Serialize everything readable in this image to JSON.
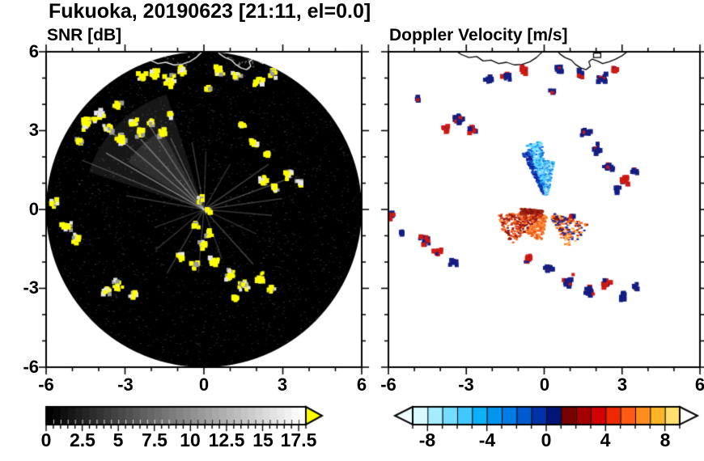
{
  "title": "Fukuoka, 20190623 [21:11, el=0.0]",
  "panels": [
    {
      "title": "SNR [dB]"
    },
    {
      "title": "Doppler Velocity [m/s]"
    }
  ],
  "axis": {
    "xlim": [
      -6,
      6
    ],
    "ylim": [
      -6,
      6
    ],
    "tick_labels": [
      "-6",
      "-3",
      "0",
      "3",
      "6"
    ],
    "major_step": 3,
    "minor_step": 1
  },
  "snr_colorbar": {
    "labels": [
      "0",
      "2.5",
      "5",
      "7.5",
      "10",
      "12.5",
      "15",
      "17.5"
    ],
    "label_values": [
      0,
      2.5,
      5,
      7.5,
      10,
      12.5,
      15,
      17.5
    ],
    "min": 0,
    "max": 18,
    "tick_step": 0.5,
    "start_color": "#000000",
    "end_color": "#ffffff",
    "over_arrow_color": "#ffff00"
  },
  "vel_colorbar": {
    "labels": [
      "-8",
      "-4",
      "0",
      "4",
      "8"
    ],
    "label_values": [
      -8,
      -4,
      0,
      4,
      8
    ],
    "min": -9,
    "max": 9,
    "cell_colors": [
      "#d7f9ff",
      "#a5ecff",
      "#73dcff",
      "#41c8ff",
      "#0fb0fa",
      "#0096f0",
      "#007ce6",
      "#005ad2",
      "#0032aa",
      "#001478",
      "#780000",
      "#a50000",
      "#d20000",
      "#f02800",
      "#ff5a14",
      "#ff8c1e",
      "#ffb428",
      "#ffe06e"
    ],
    "under_arrow_color": "#f0fdff",
    "over_arrow_color": "#ffffff"
  },
  "coastline": {
    "segments": [
      [
        [
          -3.5,
          6.1
        ],
        [
          -3.2,
          5.9
        ],
        [
          -2.9,
          5.78
        ],
        [
          -2.6,
          5.82
        ],
        [
          -2.35,
          5.65
        ],
        [
          -2.05,
          5.68
        ],
        [
          -1.75,
          5.55
        ],
        [
          -1.45,
          5.6
        ],
        [
          -1.15,
          5.5
        ],
        [
          -0.85,
          5.52
        ],
        [
          -0.55,
          5.62
        ],
        [
          -0.3,
          5.78
        ],
        [
          -0.12,
          5.95
        ],
        [
          0.0,
          6.1
        ]
      ],
      [
        [
          0.45,
          6.1
        ],
        [
          0.6,
          5.92
        ],
        [
          0.8,
          5.78
        ],
        [
          1.05,
          5.68
        ],
        [
          1.2,
          5.52
        ],
        [
          1.42,
          5.38
        ],
        [
          1.62,
          5.32
        ],
        [
          1.78,
          5.45
        ],
        [
          1.72,
          5.62
        ],
        [
          1.85,
          5.72
        ],
        [
          2.05,
          5.65
        ],
        [
          2.25,
          5.55
        ],
        [
          2.5,
          5.62
        ],
        [
          2.75,
          5.72
        ],
        [
          3.0,
          5.85
        ],
        [
          3.2,
          6.0
        ],
        [
          3.35,
          6.1
        ]
      ],
      [
        [
          1.9,
          5.95
        ],
        [
          2.18,
          5.95
        ],
        [
          2.18,
          5.78
        ],
        [
          1.9,
          5.78
        ],
        [
          1.9,
          5.95
        ]
      ]
    ]
  },
  "chart_data": [
    {
      "type": "heatmap",
      "title": "SNR [dB]",
      "units": "dB",
      "xlim": [
        -6,
        6
      ],
      "ylim": [
        -6,
        6
      ],
      "scan_radius_km": 6,
      "value_range": [
        0,
        17.5
      ],
      "background": "#000000",
      "echo_colors": [
        "#ffff00",
        "#ffff00",
        "#ffff00",
        "#ffff00",
        "#e6e6e6",
        "#9b9b9b"
      ],
      "strong_echoes": [
        [
          -2.35,
          5.0,
          0.22
        ],
        [
          -1.85,
          5.15,
          0.18
        ],
        [
          -1.3,
          4.92,
          0.26
        ],
        [
          -0.85,
          5.3,
          0.18
        ],
        [
          0.6,
          5.28,
          0.2
        ],
        [
          1.25,
          5.1,
          0.18
        ],
        [
          2.1,
          4.9,
          0.22
        ],
        [
          2.6,
          5.15,
          0.16
        ],
        [
          0.15,
          4.55,
          0.12
        ],
        [
          -4.4,
          3.3,
          0.28
        ],
        [
          -3.95,
          3.6,
          0.2
        ],
        [
          -3.6,
          3.05,
          0.26
        ],
        [
          -3.15,
          2.7,
          0.22
        ],
        [
          -2.7,
          3.3,
          0.18
        ],
        [
          -2.4,
          2.95,
          0.2
        ],
        [
          -2.0,
          3.3,
          0.16
        ],
        [
          -1.6,
          2.9,
          0.18
        ],
        [
          -3.3,
          3.95,
          0.18
        ],
        [
          -1.25,
          3.55,
          0.14
        ],
        [
          -4.75,
          2.6,
          0.16
        ],
        [
          -5.7,
          0.25,
          0.2
        ],
        [
          -5.25,
          -0.6,
          0.24
        ],
        [
          -4.85,
          -1.1,
          0.2
        ],
        [
          -0.1,
          0.4,
          0.16
        ],
        [
          0.15,
          -0.05,
          0.13
        ],
        [
          -0.3,
          -0.6,
          0.16
        ],
        [
          0.2,
          -0.95,
          0.16
        ],
        [
          -0.05,
          -1.35,
          0.16
        ],
        [
          2.25,
          1.1,
          0.2
        ],
        [
          2.7,
          0.8,
          0.18
        ],
        [
          3.2,
          1.3,
          0.2
        ],
        [
          3.65,
          1.05,
          0.16
        ],
        [
          1.45,
          3.25,
          0.16
        ],
        [
          1.95,
          2.55,
          0.2
        ],
        [
          2.35,
          2.1,
          0.16
        ],
        [
          -0.9,
          -1.8,
          0.2
        ],
        [
          -0.3,
          -2.1,
          0.18
        ],
        [
          0.4,
          -2.0,
          0.2
        ],
        [
          0.95,
          -2.5,
          0.24
        ],
        [
          1.5,
          -2.9,
          0.26
        ],
        [
          2.1,
          -2.6,
          0.2
        ],
        [
          2.55,
          -3.05,
          0.18
        ],
        [
          1.15,
          -3.35,
          0.14
        ],
        [
          -3.25,
          -2.9,
          0.24
        ],
        [
          -3.7,
          -3.1,
          0.18
        ],
        [
          -2.7,
          -3.25,
          0.18
        ]
      ],
      "noise_fans": [
        {
          "az0": 108,
          "az1": 162,
          "r": 4.6,
          "alpha": 0.12
        },
        {
          "az0": 118,
          "az1": 148,
          "r": 3.4,
          "alpha": 0.15
        }
      ],
      "noise_spokes": [
        [
          150,
          4.3,
          0.5
        ],
        [
          140,
          4.6,
          0.38
        ],
        [
          132,
          3.6,
          0.45
        ],
        [
          123,
          4.0,
          0.32
        ],
        [
          115,
          3.0,
          0.3
        ],
        [
          158,
          5.0,
          0.28
        ],
        [
          100,
          2.6,
          0.25
        ],
        [
          88,
          2.2,
          0.2
        ],
        [
          60,
          2.0,
          0.2
        ],
        [
          35,
          3.0,
          0.28
        ],
        [
          20,
          3.6,
          0.32
        ],
        [
          8,
          3.0,
          0.28
        ],
        [
          -5,
          2.6,
          0.24
        ],
        [
          -25,
          2.2,
          0.2
        ],
        [
          -48,
          2.8,
          0.28
        ],
        [
          -70,
          2.0,
          0.2
        ],
        [
          -95,
          2.4,
          0.24
        ],
        [
          -120,
          2.8,
          0.26
        ],
        [
          -140,
          2.4,
          0.22
        ],
        [
          -160,
          2.0,
          0.2
        ],
        [
          170,
          3.0,
          0.26
        ]
      ],
      "speckle": {
        "count": 2600,
        "max_alpha": 0.22
      }
    },
    {
      "type": "heatmap",
      "title": "Doppler Velocity [m/s]",
      "units": "m/s",
      "xlim": [
        -6,
        6
      ],
      "ylim": [
        -6,
        6
      ],
      "value_range": [
        -9,
        9
      ],
      "background": "#ffffff",
      "echo_patches": [
        [
          -2.1,
          4.95,
          0.2,
          "#141e82",
          "#cd1914"
        ],
        [
          -1.45,
          5.1,
          0.18,
          "#141e82",
          "#cd1914"
        ],
        [
          -0.75,
          5.3,
          0.16,
          "#cd1914",
          "#141e82"
        ],
        [
          0.6,
          5.35,
          0.18,
          "#141e82",
          "#cd1914"
        ],
        [
          1.35,
          5.15,
          0.18,
          "#141e82",
          "#cd1914"
        ],
        [
          2.2,
          5.0,
          0.22,
          "#141e82",
          "#cd1914"
        ],
        [
          2.75,
          5.3,
          0.14,
          "#cd1914",
          "#141e82"
        ],
        [
          0.3,
          4.5,
          0.1,
          "#141e82",
          "#cd1914"
        ],
        [
          -3.3,
          3.4,
          0.2,
          "#141e82",
          "#cd1914"
        ],
        [
          -2.75,
          3.0,
          0.18,
          "#cd1914",
          "#141e82"
        ],
        [
          -3.8,
          3.1,
          0.14,
          "#cd1914",
          "#141e82"
        ],
        [
          -4.9,
          4.2,
          0.1,
          "#141e82",
          "#cd1914"
        ],
        [
          1.6,
          2.9,
          0.22,
          "#141e82",
          "#cd1914"
        ],
        [
          2.0,
          2.3,
          0.26,
          "#141e82",
          "#cd1914"
        ],
        [
          2.45,
          1.6,
          0.22,
          "#141e82",
          "#cd1914"
        ],
        [
          3.1,
          1.1,
          0.18,
          "#cd1914",
          "#141e82"
        ],
        [
          3.5,
          1.45,
          0.14,
          "#141e82",
          "#cd1914"
        ],
        [
          2.8,
          0.75,
          0.12,
          "#141e82",
          "#cd1914"
        ],
        [
          -5.9,
          -0.25,
          0.16,
          "#cd1914",
          "#141e82"
        ],
        [
          -5.5,
          -0.9,
          0.12,
          "#141e82",
          "#cd1914"
        ],
        [
          -4.6,
          -1.2,
          0.26,
          "#141e82",
          "#cd1914"
        ],
        [
          -4.1,
          -1.6,
          0.2,
          "#cd1914",
          "#141e82"
        ],
        [
          -3.5,
          -2.0,
          0.16,
          "#141e82",
          "#cd1914"
        ],
        [
          -0.6,
          -1.9,
          0.18,
          "#cd1914",
          "#141e82"
        ],
        [
          0.2,
          -2.2,
          0.2,
          "#141e82",
          "#cd1914"
        ],
        [
          0.95,
          -2.7,
          0.26,
          "#141e82",
          "#cd1914"
        ],
        [
          1.7,
          -3.1,
          0.22,
          "#141e82",
          "#cd1914"
        ],
        [
          2.4,
          -2.85,
          0.18,
          "#cd1914",
          "#141e82"
        ],
        [
          3.05,
          -3.3,
          0.2,
          "#141e82",
          "#cd1914"
        ],
        [
          3.5,
          -2.95,
          0.14,
          "#141e82",
          "#cd1914"
        ],
        [
          1.05,
          -0.3,
          0.12,
          "#cd1914",
          "#141e82"
        ]
      ],
      "velocity_fans": [
        {
          "cx": 0.05,
          "cy": 0.35,
          "az0": 94,
          "az1": 110,
          "r0": 0.25,
          "r1": 2.3,
          "n": 420,
          "colors": [
            "#50d2ff",
            "#28aaf0",
            "#0f6edc",
            "#96e6ff"
          ]
        },
        {
          "cx": 0.05,
          "cy": 0.35,
          "az0": 110,
          "az1": 117,
          "r0": 0.3,
          "r1": 2.05,
          "n": 160,
          "colors": [
            "#0f50c8",
            "#0f1e96"
          ]
        },
        {
          "cx": 0.05,
          "cy": 0.35,
          "az0": 79,
          "az1": 94,
          "r0": 0.25,
          "r1": 1.55,
          "n": 260,
          "colors": [
            "#b4ecff",
            "#50c3f5",
            "#1e8ce6"
          ]
        },
        {
          "cx": 0.1,
          "cy": -0.05,
          "az0": 183,
          "az1": 222,
          "r0": 0.25,
          "r1": 1.9,
          "n": 330,
          "colors": [
            "#e64614",
            "#aa1e0f",
            "#ff7828",
            "#8c1410"
          ]
        },
        {
          "cx": 0.1,
          "cy": -0.05,
          "az0": 222,
          "az1": 258,
          "r0": 0.2,
          "r1": 1.15,
          "n": 150,
          "colors": [
            "#ff8c3c",
            "#e65a14"
          ]
        },
        {
          "cx": 0.1,
          "cy": -0.05,
          "az0": 297,
          "az1": 342,
          "r0": 0.25,
          "r1": 1.6,
          "n": 210,
          "colors": [
            "#ffb450",
            "#ff6414",
            "#821414",
            "#1e2896"
          ]
        },
        {
          "cx": 0.1,
          "cy": -0.05,
          "az0": 172,
          "az1": 186,
          "r0": 0.2,
          "r1": 1.05,
          "n": 160,
          "colors": [
            "#821414",
            "#a5280f"
          ]
        }
      ]
    }
  ]
}
